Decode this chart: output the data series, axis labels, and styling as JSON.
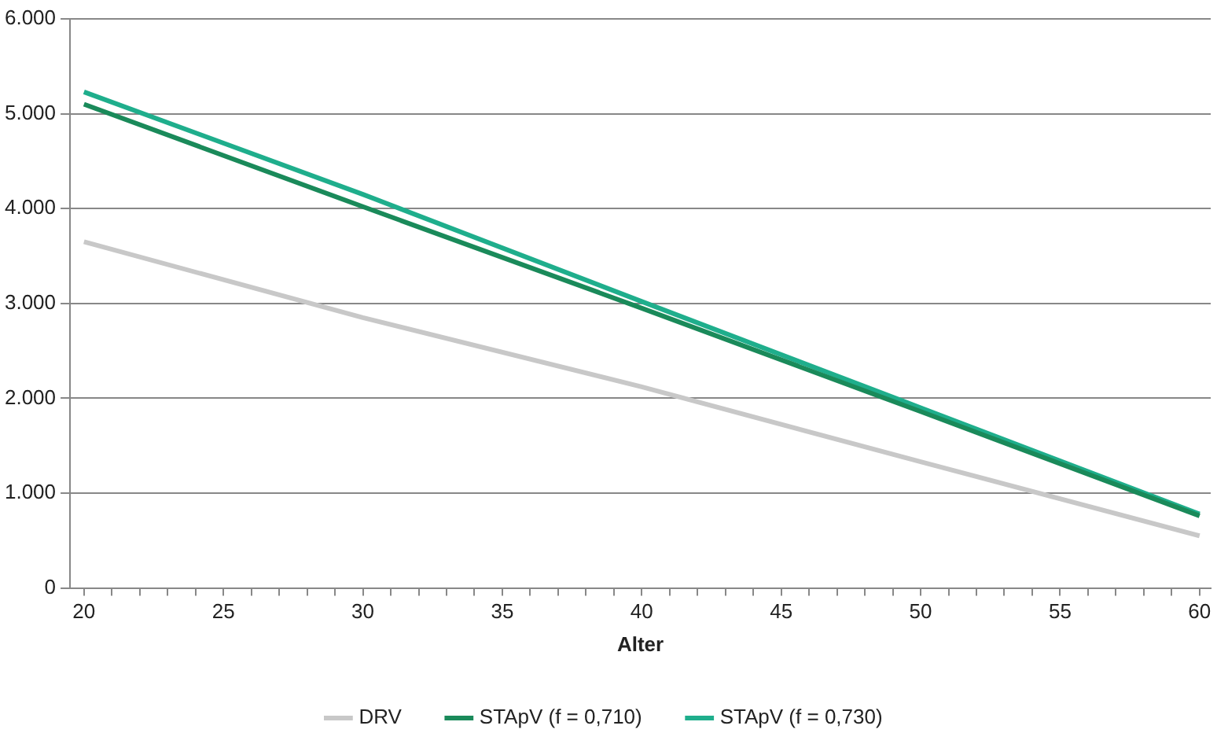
{
  "chart_data": {
    "type": "line",
    "xlabel": "Alter",
    "x": [
      20,
      30,
      40,
      50,
      60
    ],
    "series": [
      {
        "name": "DRV",
        "color": "#c8c8c8",
        "values": [
          3650,
          2850,
          2120,
          1330,
          550
        ]
      },
      {
        "name": "STApV (f = 0,710)",
        "color": "#1a8a5a",
        "values": [
          5100,
          4020,
          2950,
          1860,
          760
        ]
      },
      {
        "name": "STApV (f = 0,730)",
        "color": "#1fae8c",
        "values": [
          5230,
          4150,
          3020,
          1900,
          780
        ]
      }
    ],
    "xlim": [
      19.5,
      60.4
    ],
    "xticks": [
      20,
      {
        "value": 21,
        "label": null
      },
      {
        "value": 22,
        "label": null
      },
      {
        "value": 23,
        "label": null
      },
      {
        "value": 24,
        "label": null
      },
      25,
      {
        "value": 26,
        "label": null
      },
      {
        "value": 27,
        "label": null
      },
      {
        "value": 28,
        "label": null
      },
      {
        "value": 29,
        "label": null
      },
      30,
      {
        "value": 31,
        "label": null
      },
      {
        "value": 32,
        "label": null
      },
      {
        "value": 33,
        "label": null
      },
      {
        "value": 34,
        "label": null
      },
      35,
      {
        "value": 36,
        "label": null
      },
      {
        "value": 37,
        "label": null
      },
      {
        "value": 38,
        "label": null
      },
      {
        "value": 39,
        "label": null
      },
      40,
      {
        "value": 41,
        "label": null
      },
      {
        "value": 42,
        "label": null
      },
      {
        "value": 43,
        "label": null
      },
      {
        "value": 44,
        "label": null
      },
      45,
      {
        "value": 46,
        "label": null
      },
      {
        "value": 47,
        "label": null
      },
      {
        "value": 48,
        "label": null
      },
      {
        "value": 49,
        "label": null
      },
      50,
      {
        "value": 51,
        "label": null
      },
      {
        "value": 52,
        "label": null
      },
      {
        "value": 53,
        "label": null
      },
      {
        "value": 54,
        "label": null
      },
      55,
      {
        "value": 56,
        "label": null
      },
      {
        "value": 57,
        "label": null
      },
      {
        "value": 58,
        "label": null
      },
      {
        "value": 59,
        "label": null
      },
      60
    ],
    "ylim": [
      0,
      6000
    ],
    "yticks": [
      0,
      {
        "value": 1000,
        "label": "1.000"
      },
      {
        "value": 2000,
        "label": "2.000"
      },
      {
        "value": 3000,
        "label": "3.000"
      },
      {
        "value": 4000,
        "label": "4.000"
      },
      {
        "value": 5000,
        "label": "5.000"
      },
      {
        "value": 6000,
        "label": "6.000"
      }
    ],
    "grid": "y",
    "legend": "bottom",
    "marker": "none",
    "line_style": "solid"
  }
}
